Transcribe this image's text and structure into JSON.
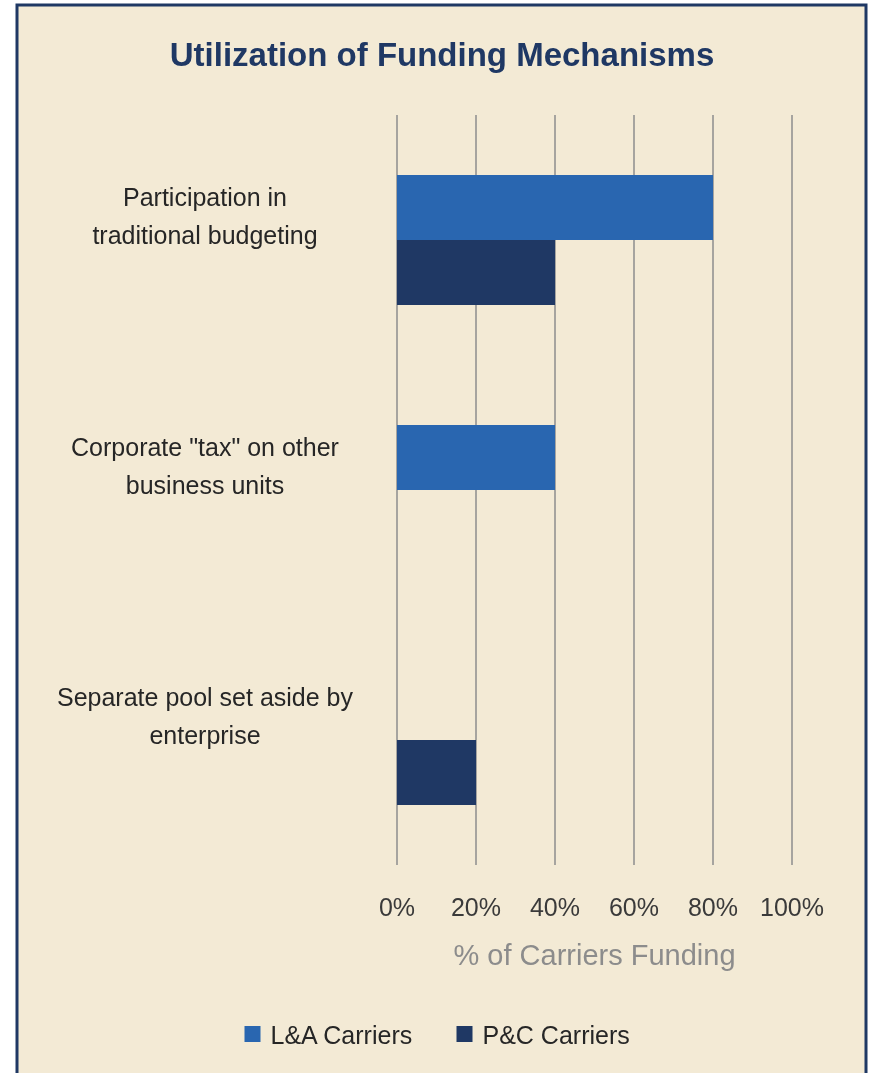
{
  "chart_data": {
    "type": "bar",
    "orientation": "horizontal",
    "title": "Utilization of Funding Mechanisms",
    "xlabel": "% of Carriers Funding",
    "categories": [
      "Participation in traditional budgeting",
      "Corporate \"tax\" on other business units",
      "Separate pool set aside by enterprise"
    ],
    "series": [
      {
        "name": "L&A Carriers",
        "color": "#2966b0",
        "values": [
          80,
          40,
          0
        ]
      },
      {
        "name": "P&C Carriers",
        "color": "#1f3864",
        "values": [
          40,
          0,
          20
        ]
      }
    ],
    "xlim": [
      0,
      100
    ],
    "xticks": [
      {
        "value": 0,
        "label": "0%"
      },
      {
        "value": 20,
        "label": "20%"
      },
      {
        "value": 40,
        "label": "40%"
      },
      {
        "value": 60,
        "label": "60%"
      },
      {
        "value": 80,
        "label": "80%"
      },
      {
        "value": 100,
        "label": "100%"
      }
    ],
    "grid": "x",
    "legend": "bottom"
  }
}
